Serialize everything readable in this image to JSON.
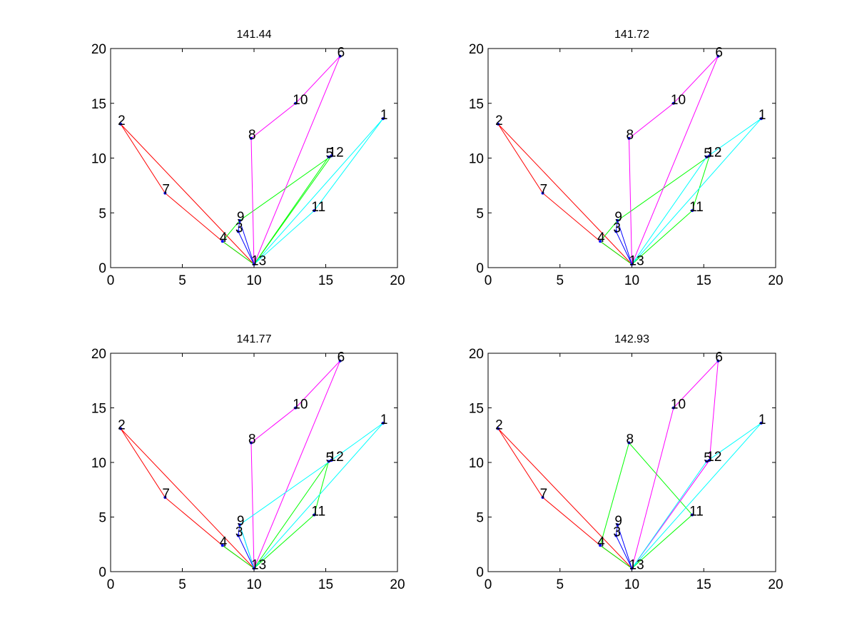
{
  "figure": {
    "type": "subplot-grid",
    "rows": 2,
    "cols": 2,
    "background": "#ffffff"
  },
  "chart_data": [
    {
      "type": "scatter-network",
      "title": "141.44",
      "xlim": [
        0,
        20
      ],
      "ylim": [
        0,
        20
      ],
      "xticks": [
        "0",
        "5",
        "10",
        "15",
        "20"
      ],
      "yticks": [
        "0",
        "5",
        "10",
        "15",
        "20"
      ],
      "nodes": [
        {
          "id": "1",
          "x": 19.0,
          "y": 13.6
        },
        {
          "id": "2",
          "x": 0.7,
          "y": 13.1
        },
        {
          "id": "3",
          "x": 8.9,
          "y": 3.3
        },
        {
          "id": "4",
          "x": 7.8,
          "y": 2.4
        },
        {
          "id": "5",
          "x": 15.2,
          "y": 10.1
        },
        {
          "id": "6",
          "x": 16.0,
          "y": 19.3
        },
        {
          "id": "7",
          "x": 3.8,
          "y": 6.8
        },
        {
          "id": "8",
          "x": 9.8,
          "y": 11.8
        },
        {
          "id": "9",
          "x": 9.0,
          "y": 4.3
        },
        {
          "id": "10",
          "x": 12.9,
          "y": 15.0
        },
        {
          "id": "11",
          "x": 14.2,
          "y": 5.2
        },
        {
          "id": "12",
          "x": 15.4,
          "y": 10.2
        },
        {
          "id": "13",
          "x": 10.0,
          "y": 0.3
        }
      ],
      "routes": [
        {
          "color": "#ff0000",
          "path": [
            "13",
            "4",
            "7",
            "2",
            "13"
          ]
        },
        {
          "color": "#00ff00",
          "path": [
            "13",
            "4",
            "9",
            "12",
            "13"
          ]
        },
        {
          "color": "#0000ff",
          "path": [
            "13",
            "3",
            "9",
            "13"
          ]
        },
        {
          "color": "#ff00ff",
          "path": [
            "13",
            "8",
            "10",
            "6",
            "13"
          ]
        },
        {
          "color": "#00ffff",
          "path": [
            "13",
            "11",
            "1",
            "13"
          ]
        },
        {
          "color": "#00ff00",
          "path": [
            "13",
            "5"
          ]
        }
      ]
    },
    {
      "type": "scatter-network",
      "title": "141.72",
      "xlim": [
        0,
        20
      ],
      "ylim": [
        0,
        20
      ],
      "xticks": [
        "0",
        "5",
        "10",
        "15",
        "20"
      ],
      "yticks": [
        "0",
        "5",
        "10",
        "15",
        "20"
      ],
      "nodes": [
        {
          "id": "1",
          "x": 19.0,
          "y": 13.6
        },
        {
          "id": "2",
          "x": 0.7,
          "y": 13.1
        },
        {
          "id": "3",
          "x": 8.9,
          "y": 3.3
        },
        {
          "id": "4",
          "x": 7.8,
          "y": 2.4
        },
        {
          "id": "5",
          "x": 15.2,
          "y": 10.1
        },
        {
          "id": "6",
          "x": 16.0,
          "y": 19.3
        },
        {
          "id": "7",
          "x": 3.8,
          "y": 6.8
        },
        {
          "id": "8",
          "x": 9.8,
          "y": 11.8
        },
        {
          "id": "9",
          "x": 9.0,
          "y": 4.3
        },
        {
          "id": "10",
          "x": 12.9,
          "y": 15.0
        },
        {
          "id": "11",
          "x": 14.2,
          "y": 5.2
        },
        {
          "id": "12",
          "x": 15.4,
          "y": 10.2
        },
        {
          "id": "13",
          "x": 10.0,
          "y": 0.3
        }
      ],
      "routes": [
        {
          "color": "#ff0000",
          "path": [
            "13",
            "4",
            "7",
            "2",
            "13"
          ]
        },
        {
          "color": "#00ff00",
          "path": [
            "13",
            "4",
            "9",
            "12",
            "11",
            "13"
          ]
        },
        {
          "color": "#0000ff",
          "path": [
            "13",
            "3",
            "9",
            "13"
          ]
        },
        {
          "color": "#ff00ff",
          "path": [
            "13",
            "8",
            "10",
            "6",
            "13"
          ]
        },
        {
          "color": "#00ffff",
          "path": [
            "13",
            "5",
            "1",
            "13"
          ]
        }
      ]
    },
    {
      "type": "scatter-network",
      "title": "141.77",
      "xlim": [
        0,
        20
      ],
      "ylim": [
        0,
        20
      ],
      "xticks": [
        "0",
        "5",
        "10",
        "15",
        "20"
      ],
      "yticks": [
        "0",
        "5",
        "10",
        "15",
        "20"
      ],
      "nodes": [
        {
          "id": "1",
          "x": 19.0,
          "y": 13.6
        },
        {
          "id": "2",
          "x": 0.7,
          "y": 13.1
        },
        {
          "id": "3",
          "x": 8.9,
          "y": 3.3
        },
        {
          "id": "4",
          "x": 7.8,
          "y": 2.4
        },
        {
          "id": "5",
          "x": 15.2,
          "y": 10.1
        },
        {
          "id": "6",
          "x": 16.0,
          "y": 19.3
        },
        {
          "id": "7",
          "x": 3.8,
          "y": 6.8
        },
        {
          "id": "8",
          "x": 9.8,
          "y": 11.8
        },
        {
          "id": "9",
          "x": 9.0,
          "y": 4.3
        },
        {
          "id": "10",
          "x": 12.9,
          "y": 15.0
        },
        {
          "id": "11",
          "x": 14.2,
          "y": 5.2
        },
        {
          "id": "12",
          "x": 15.4,
          "y": 10.2
        },
        {
          "id": "13",
          "x": 10.0,
          "y": 0.3
        }
      ],
      "routes": [
        {
          "color": "#ff0000",
          "path": [
            "13",
            "4",
            "7",
            "2",
            "13"
          ]
        },
        {
          "color": "#00ff00",
          "path": [
            "13",
            "5",
            "11",
            "13"
          ]
        },
        {
          "color": "#00ff00",
          "path": [
            "13",
            "4"
          ]
        },
        {
          "color": "#0000ff",
          "path": [
            "13",
            "3",
            "9",
            "13"
          ]
        },
        {
          "color": "#ff00ff",
          "path": [
            "13",
            "8",
            "10",
            "6",
            "13"
          ]
        },
        {
          "color": "#00ffff",
          "path": [
            "13",
            "9",
            "12",
            "1",
            "13"
          ]
        }
      ]
    },
    {
      "type": "scatter-network",
      "title": "142.93",
      "xlim": [
        0,
        20
      ],
      "ylim": [
        0,
        20
      ],
      "xticks": [
        "0",
        "5",
        "10",
        "15",
        "20"
      ],
      "yticks": [
        "0",
        "5",
        "10",
        "15",
        "20"
      ],
      "nodes": [
        {
          "id": "1",
          "x": 19.0,
          "y": 13.6
        },
        {
          "id": "2",
          "x": 0.7,
          "y": 13.1
        },
        {
          "id": "3",
          "x": 8.9,
          "y": 3.3
        },
        {
          "id": "4",
          "x": 7.8,
          "y": 2.4
        },
        {
          "id": "5",
          "x": 15.2,
          "y": 10.1
        },
        {
          "id": "6",
          "x": 16.0,
          "y": 19.3
        },
        {
          "id": "7",
          "x": 3.8,
          "y": 6.8
        },
        {
          "id": "8",
          "x": 9.8,
          "y": 11.8
        },
        {
          "id": "9",
          "x": 9.0,
          "y": 4.3
        },
        {
          "id": "10",
          "x": 12.9,
          "y": 15.0
        },
        {
          "id": "11",
          "x": 14.2,
          "y": 5.2
        },
        {
          "id": "12",
          "x": 15.4,
          "y": 10.2
        },
        {
          "id": "13",
          "x": 10.0,
          "y": 0.3
        }
      ],
      "routes": [
        {
          "color": "#ff0000",
          "path": [
            "13",
            "4",
            "7",
            "2",
            "13"
          ]
        },
        {
          "color": "#00ff00",
          "path": [
            "13",
            "4",
            "8",
            "11",
            "13"
          ]
        },
        {
          "color": "#0000ff",
          "path": [
            "13",
            "3",
            "9",
            "13"
          ]
        },
        {
          "color": "#ff00ff",
          "path": [
            "13",
            "10",
            "6",
            "12",
            "13"
          ]
        },
        {
          "color": "#00ffff",
          "path": [
            "13",
            "5",
            "1",
            "13"
          ]
        }
      ]
    }
  ]
}
